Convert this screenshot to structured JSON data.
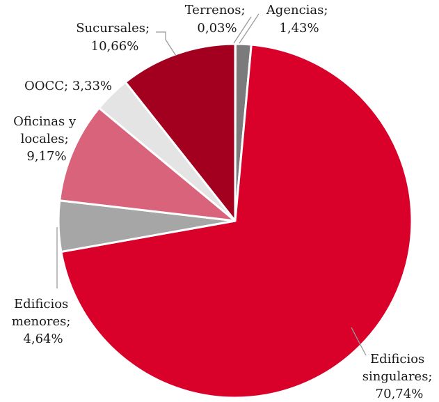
{
  "chart_data": {
    "type": "pie",
    "title": "",
    "slices": [
      {
        "name": "Terrenos;",
        "pct_label": "0,03%",
        "value": 0.03,
        "color": "#6e6e6e"
      },
      {
        "name": "Agencias;",
        "pct_label": "1,43%",
        "value": 1.43,
        "color": "#7b7b7b"
      },
      {
        "name": "Edificios singulares;",
        "pct_label": "70,74%",
        "value": 70.74,
        "color": "#d9002a"
      },
      {
        "name": "Edificios menores;",
        "pct_label": "4,64%",
        "value": 4.64,
        "color": "#a6a6a6"
      },
      {
        "name": "Oficinas y locales;",
        "pct_label": "9,17%",
        "value": 9.17,
        "color": "#d9637b"
      },
      {
        "name": "OOCC;",
        "pct_label": "3,33%",
        "value": 3.33,
        "color": "#e4e4e4"
      },
      {
        "name": "Sucursales;",
        "pct_label": "10,66%",
        "value": 10.66,
        "color": "#a3001f"
      }
    ],
    "label_lines": {
      "terrenos": [
        "Terrenos;",
        "0,03%"
      ],
      "agencias": [
        "Agencias;",
        "1,43%"
      ],
      "singulares": [
        "Edificios",
        "singulares;",
        "70,74%"
      ],
      "menores": [
        "Edificios",
        "menores;",
        "4,64%"
      ],
      "oficinas": [
        "Oficinas y",
        "locales;",
        "9,17%"
      ],
      "oocc": [
        "OOCC; 3,33%"
      ],
      "sucursales": [
        "Sucursales;",
        "10,66%"
      ]
    }
  }
}
